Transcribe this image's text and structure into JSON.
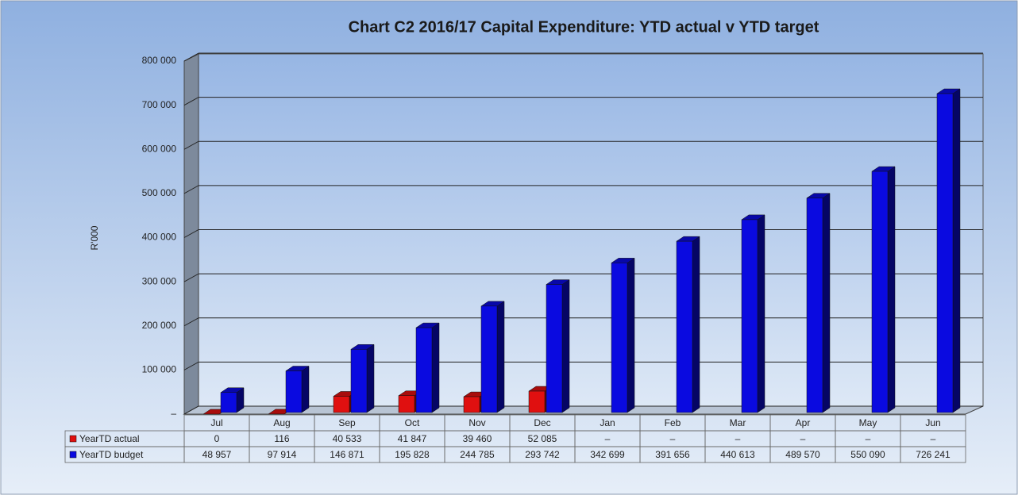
{
  "chart_data": {
    "type": "bar3d",
    "title": "Chart C2 2016/17  Capital Expenditure: YTD actual v YTD target",
    "y_label": "R'000",
    "categories": [
      "Jul",
      "Aug",
      "Sep",
      "Oct",
      "Nov",
      "Dec",
      "Jan",
      "Feb",
      "Mar",
      "Apr",
      "May",
      "Jun"
    ],
    "series": [
      {
        "name": "YearTD actual",
        "color": "#e01010",
        "values": [
          0,
          116,
          40533,
          41847,
          39460,
          52085,
          null,
          null,
          null,
          null,
          null,
          null
        ],
        "value_labels": [
          "0",
          "116",
          "40 533",
          "41 847",
          "39 460",
          "52 085",
          "–",
          "–",
          "–",
          "–",
          "–",
          "–"
        ]
      },
      {
        "name": "YearTD budget",
        "color": "#0a0ae0",
        "values": [
          48957,
          97914,
          146871,
          195828,
          244785,
          293742,
          342699,
          391656,
          440613,
          489570,
          550090,
          726241
        ],
        "value_labels": [
          "48 957",
          "97 914",
          "146 871",
          "195 828",
          "244 785",
          "293 742",
          "342 699",
          "391 656",
          "440 613",
          "489 570",
          "550 090",
          "726 241"
        ]
      }
    ],
    "ylim": [
      0,
      800000
    ],
    "yticks": [
      {
        "value": 0,
        "label": "–"
      },
      {
        "value": 100000,
        "label": "100 000"
      },
      {
        "value": 200000,
        "label": "200 000"
      },
      {
        "value": 300000,
        "label": "300 000"
      },
      {
        "value": 400000,
        "label": "400 000"
      },
      {
        "value": 500000,
        "label": "500 000"
      },
      {
        "value": 600000,
        "label": "600 000"
      },
      {
        "value": 700000,
        "label": "700 000"
      },
      {
        "value": 800000,
        "label": "800 000"
      }
    ],
    "grid": true
  }
}
